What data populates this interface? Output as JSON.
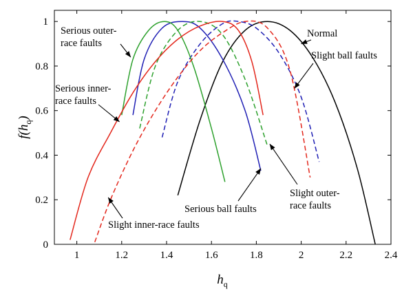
{
  "chart_data": {
    "type": "line",
    "xlabel": "hq",
    "ylabel": "f(hq)",
    "xlim": [
      0.9,
      2.4
    ],
    "ylim": [
      0,
      1.05
    ],
    "xticks": [
      1,
      1.2,
      1.4,
      1.6,
      1.8,
      2,
      2.2,
      2.4
    ],
    "xtick_labels": [
      "1",
      "1.2",
      "1.4",
      "1.6",
      "1.8",
      "2",
      "2.2",
      "2.4"
    ],
    "yticks": [
      0,
      0.2,
      0.4,
      0.6,
      0.8,
      1
    ],
    "ytick_labels": [
      "0",
      "0.2",
      "0.4",
      "0.6",
      "0.8",
      "1"
    ],
    "grid": false,
    "series": [
      {
        "name": "Normal",
        "color": "#000000",
        "dash": false,
        "x": [
          1.45,
          1.55,
          1.65,
          1.75,
          1.85,
          1.95,
          2.05,
          2.15,
          2.25,
          2.33
        ],
        "y": [
          0.22,
          0.56,
          0.82,
          0.96,
          1.0,
          0.96,
          0.84,
          0.64,
          0.34,
          0.0
        ]
      },
      {
        "name": "Slight ball faults",
        "color": "#1f1fb4",
        "dash": true,
        "x": [
          1.38,
          1.45,
          1.55,
          1.65,
          1.72,
          1.8,
          1.9,
          2.0,
          2.08
        ],
        "y": [
          0.48,
          0.73,
          0.9,
          0.99,
          1.0,
          0.97,
          0.86,
          0.66,
          0.37
        ]
      },
      {
        "name": "Serious ball faults",
        "color": "#1f1fb4",
        "dash": false,
        "x": [
          1.25,
          1.3,
          1.38,
          1.47,
          1.55,
          1.65,
          1.75,
          1.82
        ],
        "y": [
          0.58,
          0.83,
          0.97,
          1.0,
          0.97,
          0.83,
          0.6,
          0.33
        ]
      },
      {
        "name": "Serious outer-race faults",
        "color": "#2ca02c",
        "dash": false,
        "x": [
          1.2,
          1.25,
          1.32,
          1.39,
          1.45,
          1.52,
          1.6,
          1.66
        ],
        "y": [
          0.58,
          0.83,
          0.96,
          1.0,
          0.96,
          0.8,
          0.52,
          0.28
        ]
      },
      {
        "name": "Slight outer-race faults",
        "color": "#2ca02c",
        "dash": true,
        "x": [
          1.28,
          1.35,
          1.45,
          1.55,
          1.65,
          1.75,
          1.85
        ],
        "y": [
          0.52,
          0.8,
          0.96,
          1.0,
          0.94,
          0.74,
          0.44
        ]
      },
      {
        "name": "Serious inner-race faults",
        "color": "#e3261b",
        "dash": false,
        "x": [
          0.97,
          1.05,
          1.15,
          1.25,
          1.35,
          1.45,
          1.55,
          1.65,
          1.72,
          1.78,
          1.83
        ],
        "y": [
          0.02,
          0.3,
          0.5,
          0.68,
          0.82,
          0.92,
          0.98,
          1.0,
          0.96,
          0.82,
          0.58
        ]
      },
      {
        "name": "Slight inner-race faults",
        "color": "#e3261b",
        "dash": true,
        "x": [
          1.08,
          1.15,
          1.25,
          1.35,
          1.45,
          1.55,
          1.65,
          1.75,
          1.85,
          1.95,
          2.04
        ],
        "y": [
          0.01,
          0.2,
          0.42,
          0.6,
          0.75,
          0.87,
          0.95,
          1.0,
          0.97,
          0.78,
          0.3
        ]
      }
    ],
    "annotations": [
      {
        "lines": [
          "Serious outer-",
          "race faults"
        ],
        "target": [
          1.24,
          0.84
        ]
      },
      {
        "lines": [
          "Serious inner-",
          "race faults"
        ],
        "target": [
          1.19,
          0.55
        ]
      },
      {
        "lines": [
          "Normal"
        ],
        "target": [
          2.0,
          0.9
        ]
      },
      {
        "lines": [
          "Slight ball faults"
        ],
        "target": [
          1.97,
          0.7
        ]
      },
      {
        "lines": [
          "Slight outer-",
          "race faults"
        ],
        "target": [
          1.86,
          0.45
        ]
      },
      {
        "lines": [
          "Serious ball faults"
        ],
        "target": [
          1.82,
          0.34
        ]
      },
      {
        "lines": [
          "Slight inner-race faults"
        ],
        "target": [
          1.14,
          0.21
        ]
      }
    ]
  }
}
